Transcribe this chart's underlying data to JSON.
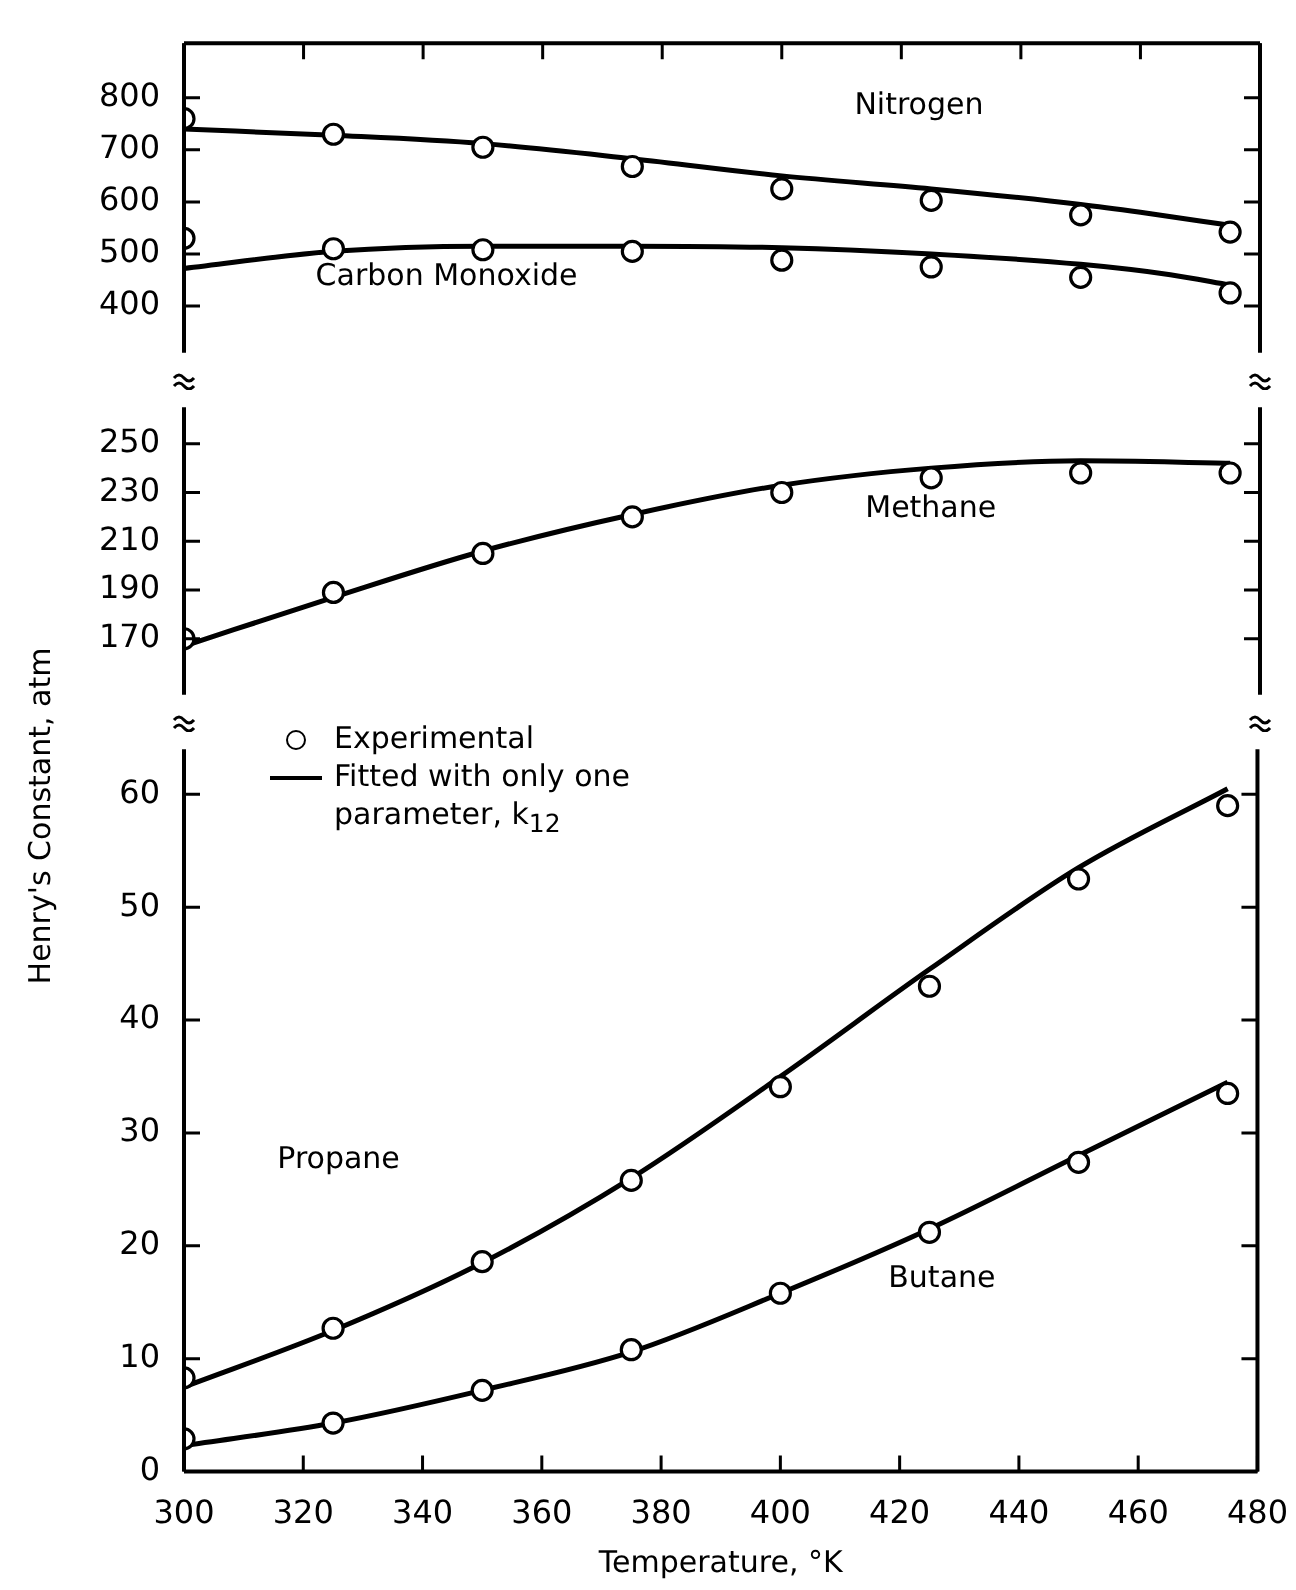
{
  "chart_data": [
    {
      "type": "line",
      "xlim": [
        300,
        480
      ],
      "xticks": [
        300,
        320,
        340,
        360,
        380,
        400,
        420,
        440,
        460,
        480
      ],
      "ylim": [
        310,
        905
      ],
      "yticks": [
        400,
        500,
        600,
        700,
        800
      ],
      "tick_labels": "y",
      "series": [
        {
          "type": "scatter",
          "marker": "circle",
          "color": "#000000",
          "x": [
            300,
            325,
            350,
            375,
            400,
            425,
            450,
            475
          ],
          "values": [
            760,
            730,
            705,
            668,
            625,
            603,
            575,
            542
          ]
        },
        {
          "color": "#000000",
          "x": [
            300,
            325,
            350,
            375,
            400,
            425,
            450,
            460,
            475
          ],
          "values": [
            740,
            728,
            712,
            683,
            650,
            625,
            595,
            580,
            555
          ]
        },
        {
          "type": "scatter",
          "marker": "circle",
          "color": "#000000",
          "x": [
            300,
            325,
            350,
            375,
            400,
            425,
            450,
            475
          ],
          "values": [
            530,
            510,
            508,
            505,
            488,
            475,
            455,
            425
          ]
        },
        {
          "color": "#000000",
          "x": [
            300,
            325,
            350,
            375,
            400,
            425,
            450,
            465,
            475
          ],
          "values": [
            472,
            505,
            515,
            515,
            512,
            500,
            480,
            460,
            440
          ]
        }
      ],
      "annotations": [
        "Nitrogen",
        "Carbon Monoxide"
      ]
    },
    {
      "type": "line",
      "xlim": [
        300,
        480
      ],
      "xticks": [
        300,
        320,
        340,
        360,
        380,
        400,
        420,
        440,
        460,
        480
      ],
      "ylim": [
        147,
        265
      ],
      "yticks": [
        170,
        190,
        210,
        230,
        250
      ],
      "tick_labels": "y",
      "series": [
        {
          "type": "scatter",
          "marker": "circle",
          "color": "#000000",
          "x": [
            300,
            325,
            350,
            375,
            400,
            425,
            450,
            475
          ],
          "values": [
            170,
            189,
            205,
            220,
            230,
            236,
            238,
            238
          ]
        },
        {
          "color": "#000000",
          "x": [
            300,
            325,
            350,
            375,
            400,
            425,
            450,
            475
          ],
          "values": [
            167,
            187,
            206,
            221,
            233,
            240,
            243,
            242
          ]
        }
      ],
      "annotations": [
        "Methane"
      ]
    },
    {
      "type": "line",
      "xlim": [
        300,
        480
      ],
      "xticks": [
        300,
        320,
        340,
        360,
        380,
        400,
        420,
        440,
        460,
        480
      ],
      "ylim": [
        0,
        64
      ],
      "yticks": [
        0,
        10,
        20,
        30,
        40,
        50,
        60
      ],
      "xlabel": "Temperature, °K",
      "ylabel": "Henry's Constant, atm",
      "legend": "top left",
      "series": [
        {
          "name": "Experimental",
          "type": "scatter",
          "marker": "circle",
          "color": "#000000",
          "x": [
            300,
            325,
            350,
            375,
            400,
            425,
            450,
            475
          ],
          "values": [
            8.3,
            12.7,
            18.6,
            25.8,
            34.1,
            43.0,
            52.5,
            59.0
          ]
        },
        {
          "name": "Fitted with only one parameter, k$_{12}$",
          "color": "#000000",
          "x": [
            300,
            325,
            350,
            375,
            400,
            425,
            450,
            475
          ],
          "values": [
            7.5,
            12.5,
            18.5,
            26,
            35,
            44.5,
            53.5,
            60.5
          ]
        },
        {
          "type": "scatter",
          "marker": "circle",
          "color": "#000000",
          "x": [
            300,
            325,
            350,
            375,
            400,
            425,
            450,
            475
          ],
          "values": [
            2.9,
            4.3,
            7.2,
            10.8,
            15.8,
            21.2,
            27.4,
            33.5
          ]
        },
        {
          "color": "#000000",
          "x": [
            300,
            325,
            350,
            375,
            400,
            425,
            450,
            475
          ],
          "values": [
            2.3,
            4.3,
            7.2,
            10.6,
            15.8,
            21.5,
            28,
            34.5
          ]
        }
      ],
      "annotations": [
        "Propane",
        "Butane"
      ]
    }
  ]
}
